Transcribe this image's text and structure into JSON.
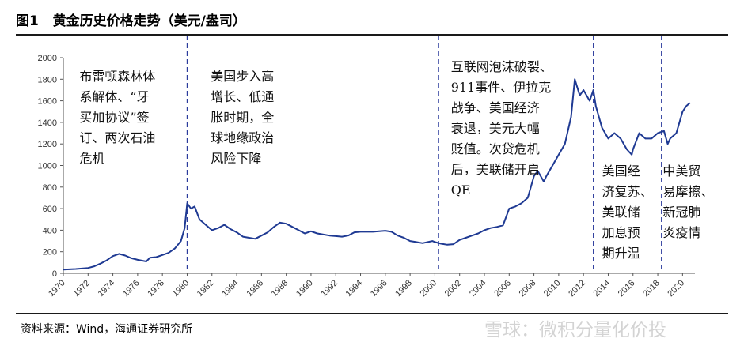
{
  "figure": {
    "label": "图1",
    "title": "黄金历史价格走势（美元/盎司）"
  },
  "source": "资料来源：Wind，海通证券研究所",
  "watermark": "雪球：微积分量化价投",
  "chart_data": {
    "type": "line",
    "title": "",
    "xlabel": "",
    "ylabel": "",
    "xlim": [
      1970,
      2021
    ],
    "ylim": [
      0,
      2000
    ],
    "grid": false,
    "legend": "none",
    "line_color": "#1f3a93",
    "y_ticks": [
      "0",
      "200",
      "400",
      "600",
      "800",
      "1000",
      "1200",
      "1400",
      "1600",
      "1800",
      "2000"
    ],
    "x_ticks": [
      "1970",
      "1972",
      "1974",
      "1976",
      "1978",
      "1980",
      "1982",
      "1984",
      "1986",
      "1988",
      "1990",
      "1992",
      "1994",
      "1996",
      "1998",
      "2000",
      "2002",
      "2004",
      "2006",
      "2008",
      "2010",
      "2012",
      "2014",
      "2016",
      "2018",
      "2020"
    ],
    "series": [
      {
        "x": [
          1970,
          1971,
          1972,
          1972.5,
          1973,
          1973.5,
          1974,
          1974.5,
          1975,
          1975.5,
          1976,
          1976.7,
          1977,
          1977.5,
          1978,
          1978.5,
          1979,
          1979.5,
          1979.8,
          1980.0,
          1980.3,
          1980.6,
          1981,
          1981.5,
          1982,
          1982.5,
          1983,
          1983.5,
          1984,
          1984.5,
          1985,
          1985.5,
          1986,
          1986.5,
          1987,
          1987.5,
          1988,
          1988.5,
          1989,
          1989.5,
          1990,
          1990.5,
          1991,
          1991.5,
          1992,
          1992.5,
          1993,
          1993.5,
          1994,
          1995,
          1996,
          1996.5,
          1997,
          1997.5,
          1998,
          1998.5,
          1999,
          1999.8,
          2000,
          2000.5,
          2001,
          2001.5,
          2002,
          2002.5,
          2003,
          2003.5,
          2004,
          2004.5,
          2005,
          2005.5,
          2006,
          2006.5,
          2007,
          2007.5,
          2008,
          2008.3,
          2008.8,
          2009,
          2009.5,
          2010,
          2010.5,
          2011,
          2011.3,
          2011.7,
          2012,
          2012.5,
          2012.8,
          2013,
          2013.5,
          2014,
          2014.5,
          2015,
          2015.5,
          2015.9,
          2016,
          2016.5,
          2017,
          2017.5,
          2018,
          2018.5,
          2018.8,
          2019,
          2019.5,
          2020,
          2020.3,
          2020.6
        ],
        "values": [
          35,
          40,
          50,
          65,
          90,
          120,
          160,
          180,
          165,
          140,
          125,
          110,
          145,
          150,
          170,
          190,
          230,
          300,
          420,
          650,
          600,
          620,
          500,
          450,
          400,
          420,
          450,
          410,
          380,
          340,
          330,
          320,
          350,
          380,
          430,
          470,
          460,
          430,
          400,
          370,
          390,
          370,
          360,
          350,
          345,
          340,
          350,
          380,
          385,
          385,
          395,
          385,
          350,
          330,
          300,
          290,
          280,
          300,
          290,
          275,
          265,
          270,
          310,
          330,
          350,
          370,
          400,
          420,
          430,
          445,
          600,
          620,
          650,
          700,
          900,
          950,
          850,
          900,
          1000,
          1100,
          1200,
          1450,
          1800,
          1650,
          1700,
          1600,
          1700,
          1550,
          1350,
          1250,
          1300,
          1250,
          1150,
          1100,
          1150,
          1300,
          1250,
          1250,
          1300,
          1320,
          1200,
          1250,
          1300,
          1500,
          1550,
          1580
        ]
      }
    ],
    "dividers": [
      1980,
      2000.3,
      2012.8,
      2018.3
    ],
    "annotations": [
      {
        "x_data": 1971.3,
        "lines": [
          "布雷顿森林体",
          "系解体、“牙",
          "买加协议”签",
          "订、两次石油",
          "危机"
        ]
      },
      {
        "x_data": 1981.9,
        "lines": [
          "美国步入高",
          "增长、低通",
          "胀时期，全",
          "球地缘政治",
          "风险下降"
        ]
      },
      {
        "x_data": 2001.3,
        "lines": [
          "互联网泡沫破裂、",
          "911事件、伊拉克",
          "战争、美国经济",
          "衰退，美元大幅",
          "贬值。次贷危机",
          "后，美联储开启",
          "QE"
        ]
      },
      {
        "x_data": 2013.5,
        "lines": [
          "美国经",
          "济复苏、",
          "美联储",
          "加息预",
          "期升温"
        ]
      },
      {
        "x_data": 2018.4,
        "lines": [
          "中美贸",
          "易摩擦、",
          "新冠肺",
          "炎疫情"
        ]
      }
    ]
  }
}
